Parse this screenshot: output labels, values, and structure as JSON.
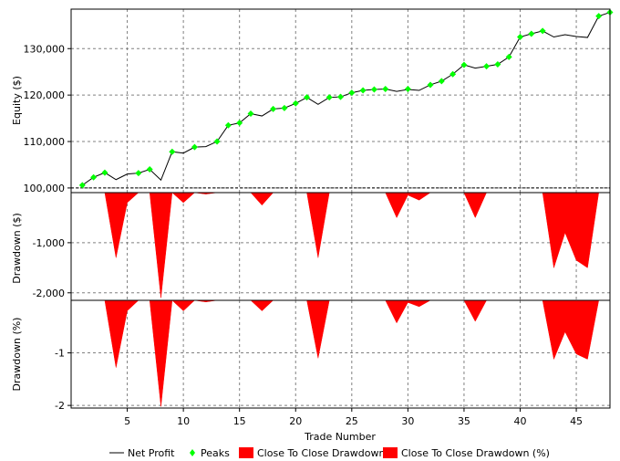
{
  "chart_data": {
    "type": "line",
    "xlabel": "Trade Number",
    "xlim": [
      0,
      48
    ],
    "x_ticks": [
      5,
      10,
      15,
      20,
      25,
      30,
      35,
      40,
      45
    ],
    "panels": [
      {
        "id": "equity",
        "ylabel": "Equity ($)",
        "ylim": [
          99000,
          138500
        ],
        "y_ticks": [
          100000,
          110000,
          120000,
          130000
        ],
        "y_tick_labels": [
          "100,000",
          "110,000",
          "120,000",
          "130,000"
        ],
        "baseline": 100000
      },
      {
        "id": "drawdown-dollars",
        "ylabel": "Drawdown ($)",
        "ylim": [
          -2150,
          0
        ],
        "y_ticks": [
          -1000,
          -2000
        ],
        "y_tick_labels": [
          "-1,000",
          "-2,000"
        ]
      },
      {
        "id": "drawdown-percent",
        "ylabel": "Drawdown (%)",
        "ylim": [
          -2.05,
          0
        ],
        "y_ticks": [
          -1,
          -2
        ],
        "y_tick_labels": [
          "-1",
          "-2"
        ]
      }
    ],
    "series": [
      {
        "name": "Net Profit",
        "panel": "equity",
        "color": "#000000",
        "x": [
          1,
          2,
          3,
          4,
          5,
          6,
          7,
          8,
          9,
          10,
          11,
          12,
          13,
          14,
          15,
          16,
          17,
          18,
          19,
          20,
          21,
          22,
          23,
          24,
          25,
          26,
          27,
          28,
          29,
          30,
          31,
          32,
          33,
          34,
          35,
          36,
          37,
          38,
          39,
          40,
          41,
          42,
          43,
          44,
          45,
          46,
          47,
          48
        ],
        "values": [
          100600,
          102300,
          103300,
          101800,
          103000,
          103200,
          104000,
          101700,
          107800,
          107500,
          108800,
          108900,
          110000,
          113500,
          114000,
          116000,
          115500,
          117000,
          117200,
          118200,
          119500,
          118000,
          119500,
          119600,
          120500,
          121000,
          121200,
          121300,
          120800,
          121200,
          121000,
          122200,
          123000,
          124500,
          126500,
          125800,
          126200,
          126600,
          128200,
          132500,
          133200,
          133800,
          132500,
          133000,
          132600,
          132400,
          137000,
          137800
        ]
      },
      {
        "name": "Peaks",
        "panel": "equity",
        "color": "#00ff00",
        "x": [
          1,
          2,
          3,
          6,
          7,
          9,
          11,
          13,
          14,
          15,
          16,
          18,
          19,
          20,
          21,
          23,
          24,
          25,
          26,
          27,
          28,
          30,
          32,
          33,
          34,
          35,
          37,
          38,
          39,
          40,
          41,
          42,
          47,
          48
        ],
        "values": [
          100600,
          102300,
          103300,
          103200,
          104000,
          107800,
          108800,
          110000,
          113500,
          114000,
          116000,
          117000,
          117200,
          118200,
          119500,
          119500,
          119600,
          120500,
          121000,
          121200,
          121300,
          121300,
          122200,
          123000,
          124500,
          126500,
          126200,
          126600,
          128200,
          132500,
          133200,
          133800,
          137000,
          137800
        ]
      },
      {
        "name": "Close To Close Drawdown",
        "panel": "drawdown-dollars",
        "color": "#ff0000",
        "x": [
          1,
          2,
          3,
          4,
          5,
          6,
          7,
          8,
          9,
          10,
          11,
          12,
          13,
          14,
          15,
          16,
          17,
          18,
          19,
          20,
          21,
          22,
          23,
          24,
          25,
          26,
          27,
          28,
          29,
          30,
          31,
          32,
          33,
          34,
          35,
          36,
          37,
          38,
          39,
          40,
          41,
          42,
          43,
          44,
          45,
          46,
          47,
          48
        ],
        "values": [
          0,
          0,
          0,
          -1300,
          -200,
          0,
          0,
          -2100,
          0,
          -200,
          0,
          -30,
          0,
          0,
          0,
          0,
          -250,
          0,
          0,
          0,
          0,
          -1300,
          0,
          0,
          0,
          0,
          0,
          0,
          -500,
          -50,
          -150,
          0,
          0,
          0,
          0,
          -500,
          0,
          0,
          0,
          0,
          0,
          0,
          -1500,
          -800,
          -1350,
          -1500,
          0,
          0
        ]
      },
      {
        "name": "Close To Close Drawdown (%)",
        "panel": "drawdown-percent",
        "color": "#ff0000",
        "x": [
          1,
          2,
          3,
          4,
          5,
          6,
          7,
          8,
          9,
          10,
          11,
          12,
          13,
          14,
          15,
          16,
          17,
          18,
          19,
          20,
          21,
          22,
          23,
          24,
          25,
          26,
          27,
          28,
          29,
          30,
          31,
          32,
          33,
          34,
          35,
          36,
          37,
          38,
          39,
          40,
          41,
          42,
          43,
          44,
          45,
          46,
          47,
          48
        ],
        "values": [
          0,
          0,
          0,
          -1.28,
          -0.2,
          0,
          0,
          -2.02,
          0,
          -0.2,
          0,
          -0.03,
          0,
          0,
          0,
          0,
          -0.2,
          0,
          0,
          0,
          0,
          -1.1,
          0,
          0,
          0,
          0,
          0,
          0,
          -0.43,
          -0.04,
          -0.12,
          0,
          0,
          0,
          0,
          -0.4,
          0,
          0,
          0,
          0,
          0,
          0,
          -1.12,
          -0.6,
          -1.02,
          -1.12,
          0,
          0
        ]
      }
    ],
    "legend": {
      "placement": "bottom",
      "entries": [
        "Net Profit",
        "Peaks",
        "Close To Close Drawdown",
        "Close To Close Drawdown (%)"
      ]
    },
    "grid": true
  }
}
